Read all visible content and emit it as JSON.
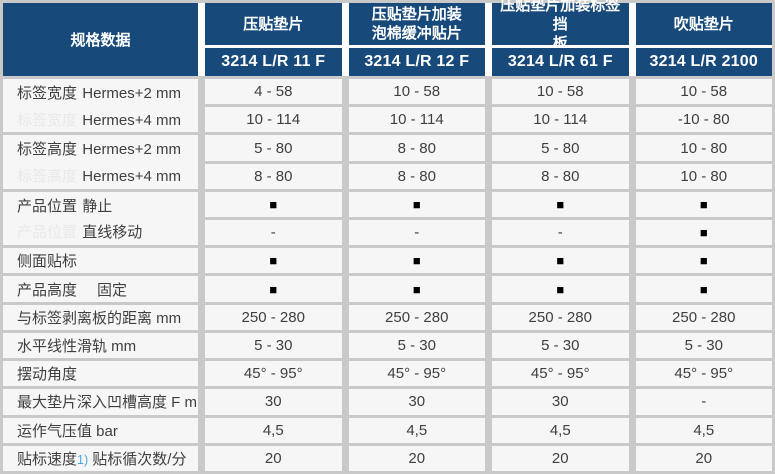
{
  "theme": {
    "header_bg": "#17497a",
    "header_text": "#ffffff",
    "cell_bg": "#f6f6f6",
    "gap_gray": "#c9c9c9",
    "header_gap_white": "#ffffff",
    "body_text": "#3f3f3f",
    "ghost_label": "#e9e9e9",
    "footnote_blue": "#45a7de",
    "square_black": "#000000"
  },
  "table": {
    "corner_header": "规格数据",
    "columns": [
      {
        "title": "压贴垫片",
        "model": "3214 L/R 11 F"
      },
      {
        "title": "压贴垫片加装\n泡棉缓冲贴片",
        "model": "3214 L/R 12 F"
      },
      {
        "title": "压贴垫片加装标签挡\n板",
        "model": "3214 L/R 61 F"
      },
      {
        "title": "吹贴垫片",
        "model": "3214 L/R 2100"
      }
    ],
    "rows": [
      {
        "label": "标签宽度",
        "sub": "Hermes+2 mm",
        "group": "start",
        "values": [
          "4 - 58",
          "10 - 58",
          "10 - 58",
          "10 - 58"
        ]
      },
      {
        "label": "标签宽度",
        "sub": "Hermes+4 mm",
        "group": "end",
        "values": [
          "10 - 114",
          "10 - 114",
          "10 - 114",
          "-10 - 80"
        ]
      },
      {
        "label": "标签高度",
        "sub": "Hermes+2 mm",
        "group": "start",
        "values": [
          "5 - 80",
          "8 - 80",
          "5 - 80",
          "10 - 80"
        ]
      },
      {
        "label": "标签高度",
        "sub": "Hermes+4 mm",
        "group": "end",
        "values": [
          "8 - 80",
          "8 - 80",
          "8 - 80",
          "10 - 80"
        ]
      },
      {
        "label": "产品位置",
        "sub": "静止",
        "group": "start",
        "values": [
          "■",
          "■",
          "■",
          "■"
        ]
      },
      {
        "label": "产品位置",
        "sub": "直线移动",
        "group": "end",
        "values": [
          "-",
          "-",
          "-",
          "■"
        ]
      },
      {
        "label": "侧面贴标",
        "values": [
          "■",
          "■",
          "■",
          "■"
        ]
      },
      {
        "label": "产品高度",
        "sub": "固定",
        "sub_wide": true,
        "values": [
          "■",
          "■",
          "■",
          "■"
        ]
      },
      {
        "label": "与标签剥离板的距离 mm",
        "values": [
          "250 - 280",
          "250 - 280",
          "250 - 280",
          "250 - 280"
        ]
      },
      {
        "label": "水平线性滑轨 mm",
        "values": [
          "5 - 30",
          "5 - 30",
          "5 - 30",
          "5 - 30"
        ]
      },
      {
        "label": "摆动角度",
        "values": [
          "45° - 95°",
          "45° - 95°",
          "45° - 95°",
          "45° - 95°"
        ]
      },
      {
        "label": "最大垫片深入凹槽高度 F mm",
        "values": [
          "30",
          "30",
          "30",
          "-"
        ]
      },
      {
        "label": "运作气压值 bar",
        "values": [
          "4,5",
          "4,5",
          "4,5",
          "4,5"
        ]
      },
      {
        "label": "贴标速度",
        "footnote": "1)",
        "label_tail": " 贴标循次数/分",
        "values": [
          "20",
          "20",
          "20",
          "20"
        ]
      }
    ]
  }
}
